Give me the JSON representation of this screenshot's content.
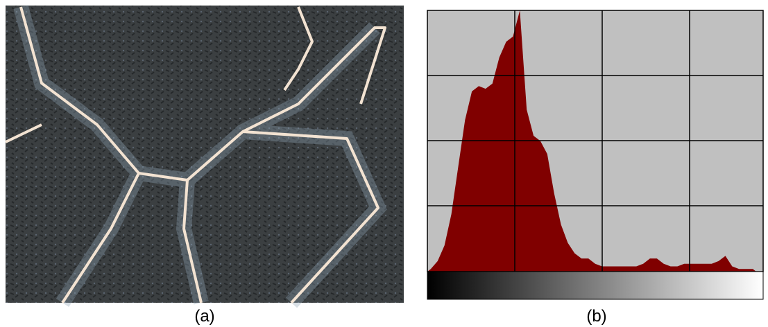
{
  "panels": [
    {
      "label": "(a)"
    },
    {
      "label": "(b)"
    }
  ],
  "histogram": {
    "type": "area",
    "color": "#800000",
    "values": [
      1,
      4,
      10,
      22,
      40,
      58,
      69,
      71,
      70,
      72,
      82,
      88,
      90,
      100,
      62,
      52,
      50,
      45,
      30,
      18,
      11,
      7,
      5,
      5,
      3,
      2,
      2,
      2,
      2,
      2,
      2,
      3,
      5,
      5,
      3,
      2,
      2,
      3,
      3,
      3,
      3,
      3,
      4,
      6,
      2,
      1,
      1,
      1
    ]
  }
}
